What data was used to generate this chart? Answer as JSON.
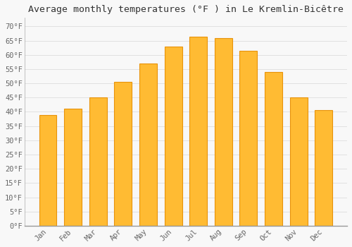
{
  "title": "Average monthly temperatures (°F ) in Le Kremlin-Bicêtre",
  "months": [
    "Jan",
    "Feb",
    "Mar",
    "Apr",
    "May",
    "Jun",
    "Jul",
    "Aug",
    "Sep",
    "Oct",
    "Nov",
    "Dec"
  ],
  "values": [
    39,
    41,
    45,
    50.5,
    57,
    63,
    66.5,
    66,
    61.5,
    54,
    45,
    40.5
  ],
  "bar_color": "#FFBB33",
  "bar_edge_color": "#E8930A",
  "background_color": "#F8F8F8",
  "grid_color": "#DDDDDD",
  "yticks": [
    0,
    5,
    10,
    15,
    20,
    25,
    30,
    35,
    40,
    45,
    50,
    55,
    60,
    65,
    70
  ],
  "ylim": [
    0,
    73
  ],
  "title_fontsize": 9.5,
  "tick_fontsize": 7.5,
  "tick_color": "#666666",
  "title_color": "#333333",
  "bar_width": 0.7
}
